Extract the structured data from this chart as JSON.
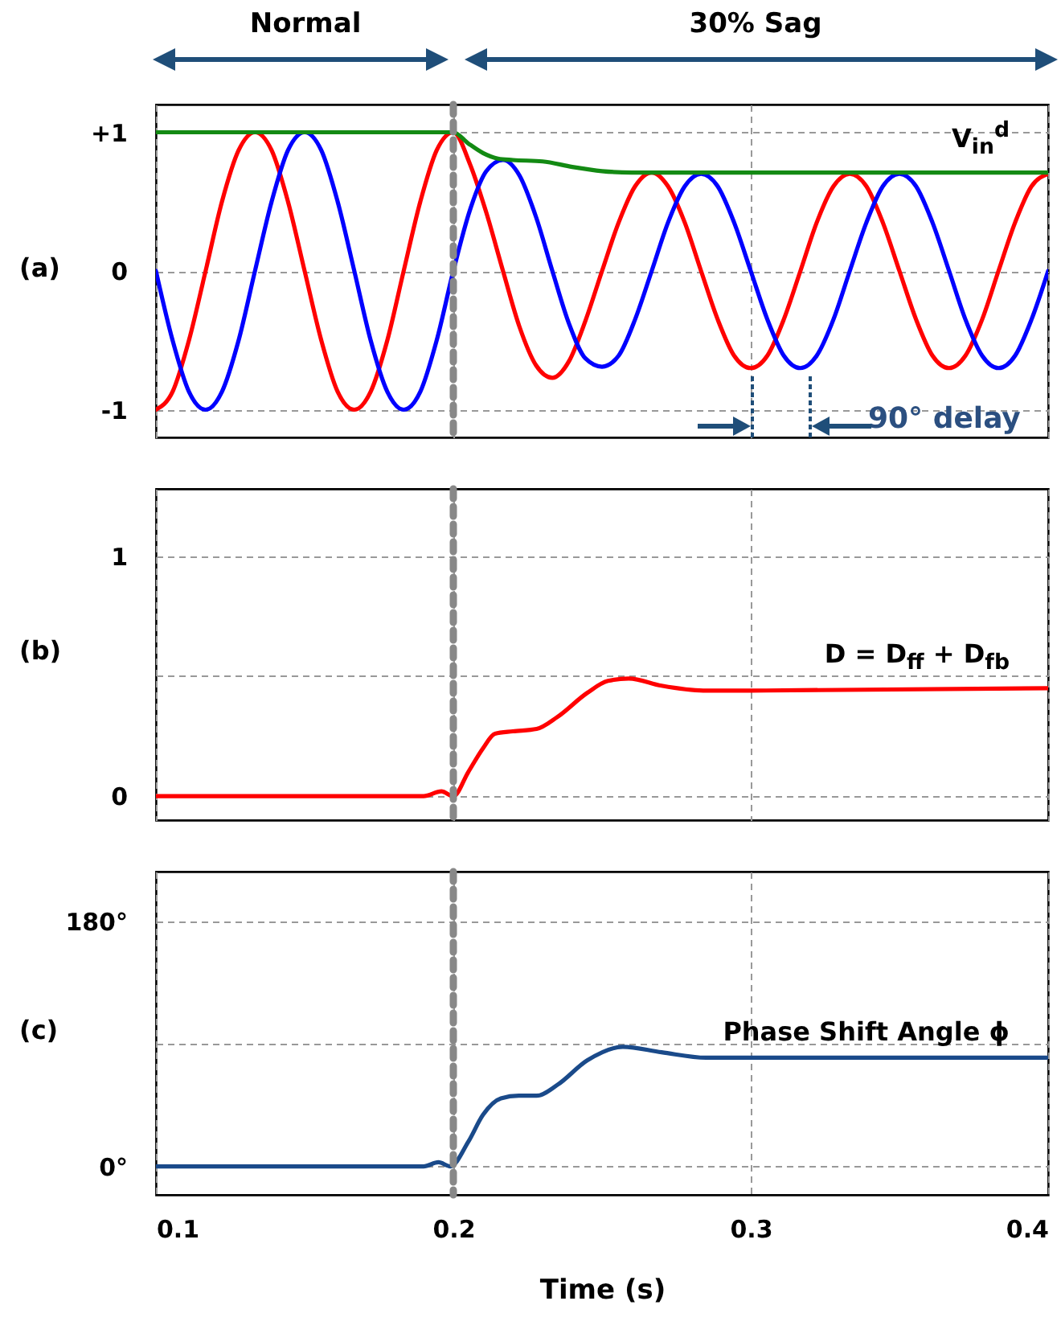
{
  "chart_data": [
    {
      "type": "line",
      "title": "(a)",
      "annotations": [
        "Normal",
        "30% Sag",
        "90° delay"
      ],
      "x": [
        0.1,
        0.1056,
        0.1111,
        0.1167,
        0.1222,
        0.1278,
        0.1333,
        0.1389,
        0.1444,
        0.15,
        0.1556,
        0.1611,
        0.1667,
        0.1722,
        0.1778,
        0.1833,
        0.1889,
        0.1944,
        0.2,
        0.2056,
        0.2111,
        0.2167,
        0.2222,
        0.2278,
        0.2333,
        0.2389,
        0.2444,
        0.25,
        0.2556,
        0.2611,
        0.2667,
        0.2722,
        0.2778,
        0.2833,
        0.2889,
        0.2944,
        0.3,
        0.3056,
        0.3111,
        0.3167,
        0.3222,
        0.3278,
        0.3333,
        0.3389,
        0.3444,
        0.35,
        0.3556,
        0.3611,
        0.3667,
        0.3722,
        0.3778,
        0.3833,
        0.3889,
        0.3944,
        0.4
      ],
      "series": [
        {
          "color": "#ff0000",
          "values": [
            -1,
            -0.87,
            -0.5,
            0,
            0.5,
            0.87,
            1,
            0.87,
            0.5,
            0,
            -0.5,
            -0.87,
            -1,
            -0.87,
            -0.5,
            0,
            0.5,
            0.87,
            1,
            0.77,
            0.42,
            0,
            -0.4,
            -0.68,
            -0.77,
            -0.65,
            -0.36,
            0,
            0.35,
            0.61,
            0.71,
            0.61,
            0.35,
            0,
            -0.35,
            -0.61,
            -0.7,
            -0.61,
            -0.35,
            0,
            0.35,
            0.61,
            0.7,
            0.61,
            0.35,
            0,
            -0.35,
            -0.61,
            -0.7,
            -0.61,
            -0.35,
            0,
            0.35,
            0.61,
            0.7
          ]
        },
        {
          "color": "#0000ff",
          "values": [
            0,
            -0.5,
            -0.87,
            -1,
            -0.87,
            -0.5,
            0,
            0.5,
            0.87,
            1,
            0.87,
            0.5,
            0,
            -0.5,
            -0.87,
            -1,
            -0.87,
            -0.5,
            0,
            0.44,
            0.72,
            0.8,
            0.69,
            0.39,
            0,
            -0.38,
            -0.63,
            -0.69,
            -0.61,
            -0.35,
            0,
            0.35,
            0.61,
            0.7,
            0.61,
            0.35,
            0,
            -0.35,
            -0.61,
            -0.7,
            -0.61,
            -0.35,
            0,
            0.35,
            0.61,
            0.7,
            0.61,
            0.35,
            0,
            -0.35,
            -0.61,
            -0.7,
            -0.61,
            -0.35,
            0
          ]
        },
        {
          "name": "V$_{in}$$^{d}$",
          "color": "#138a13",
          "x": [
            0.1,
            0.195,
            0.2,
            0.205,
            0.21,
            0.215,
            0.22,
            0.23,
            0.24,
            0.25,
            0.26,
            0.3,
            0.35,
            0.4
          ],
          "values": [
            1,
            1,
            1,
            0.92,
            0.85,
            0.81,
            0.8,
            0.79,
            0.75,
            0.72,
            0.71,
            0.71,
            0.71,
            0.71
          ]
        }
      ],
      "xlim": [
        0.1,
        0.4
      ],
      "xticks": [
        0.1,
        0.2,
        0.3,
        0.4
      ],
      "ylim": [
        -1.2,
        1.2
      ],
      "yticks": [
        -1,
        0,
        {
          "value": 1,
          "label": "+1"
        }
      ],
      "grid": true,
      "tick_labels": "y",
      "ref_lines": [
        {
          "axis": "x",
          "value": 0.2,
          "color": "#888888",
          "line_style": "dashed"
        }
      ]
    },
    {
      "type": "line",
      "title": "(b)",
      "series": [
        {
          "name": "D = D$_{ff}$ + D$_{fb}$",
          "color": "#ff0000",
          "x": [
            0.1,
            0.19,
            0.196,
            0.2,
            0.205,
            0.21,
            0.214,
            0.22,
            0.228,
            0.235,
            0.245,
            0.252,
            0.259,
            0.27,
            0.284,
            0.3,
            0.4
          ],
          "values": [
            0,
            0,
            0.02,
            0,
            0.1,
            0.2,
            0.26,
            0.27,
            0.28,
            0.33,
            0.43,
            0.48,
            0.49,
            0.46,
            0.44,
            0.44,
            0.45
          ]
        }
      ],
      "xlim": [
        0.1,
        0.4
      ],
      "xticks": [
        0.1,
        0.2,
        0.3,
        0.4
      ],
      "ylim": [
        -0.1,
        1.28
      ],
      "yticks": [
        0,
        {
          "value": 0.5,
          "label": null
        },
        1
      ],
      "grid": true,
      "tick_labels": "y",
      "ref_lines": [
        {
          "axis": "x",
          "value": 0.2,
          "color": "#888888",
          "line_style": "dashed"
        }
      ]
    },
    {
      "type": "line",
      "title": "(c)",
      "xlabel": "Time (s)",
      "series": [
        {
          "name": "Phase Shift Angle ϕ",
          "color": "#1a4a8a",
          "x": [
            0.1,
            0.19,
            0.195,
            0.199,
            0.205,
            0.21,
            0.216,
            0.222,
            0.228,
            0.235,
            0.245,
            0.257,
            0.27,
            0.285,
            0.3,
            0.4
          ],
          "values": [
            0,
            0,
            3,
            0,
            18,
            38,
            50,
            52,
            52,
            60,
            78,
            88,
            84,
            80,
            80,
            80
          ]
        }
      ],
      "xlim": [
        0.1,
        0.4
      ],
      "xticks": [
        0.1,
        0.2,
        0.3,
        0.4
      ],
      "ylim": [
        -21,
        217
      ],
      "yticks": [
        {
          "value": 0,
          "label": "0°"
        },
        {
          "value": 90,
          "label": null
        },
        {
          "value": 180,
          "label": "180°"
        }
      ],
      "grid": true,
      "ref_lines": [
        {
          "axis": "x",
          "value": 0.2,
          "color": "#888888",
          "line_style": "dashed"
        }
      ]
    }
  ]
}
